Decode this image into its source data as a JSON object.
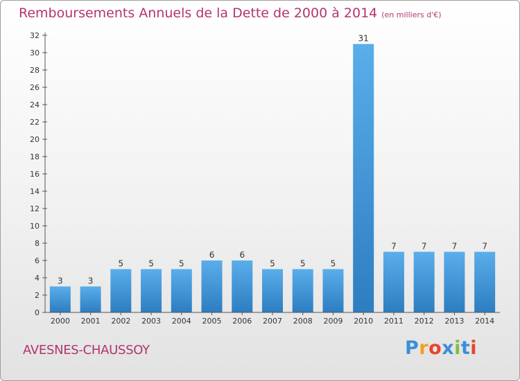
{
  "title": "Remboursements Annuels de la Dette de 2000 à 2014",
  "unit": "(en milliers d'€)",
  "location": "AVESNES-CHAUSSOY",
  "logo": {
    "letters": [
      "P",
      "r",
      "o",
      "x",
      "i",
      "t",
      "i"
    ],
    "colors": [
      "#3a8fd8",
      "#f0a020",
      "#e8452c",
      "#3a8fd8",
      "#7fbf3f",
      "#3a8fd8",
      "#e8452c"
    ]
  },
  "colors": {
    "title": "#b3346f",
    "bar_light": "#5aaeea",
    "bar_dark": "#2d7dc1",
    "axis": "#555555"
  },
  "chart_data": {
    "type": "bar",
    "categories": [
      "2000",
      "2001",
      "2002",
      "2003",
      "2004",
      "2005",
      "2006",
      "2007",
      "2008",
      "2009",
      "2010",
      "2011",
      "2012",
      "2013",
      "2014"
    ],
    "values": [
      3,
      3,
      5,
      5,
      5,
      6,
      6,
      5,
      5,
      5,
      31,
      7,
      7,
      7,
      7
    ],
    "data_labels": [
      "3",
      "3",
      "5",
      "5",
      "5",
      "6",
      "6",
      "5",
      "5",
      "5",
      "31",
      "7",
      "7",
      "7",
      "7"
    ],
    "yticks": [
      "0",
      "2",
      "4",
      "6",
      "8",
      "10",
      "12",
      "14",
      "16",
      "18",
      "20",
      "22",
      "24",
      "26",
      "28",
      "30",
      "32"
    ],
    "ylim": [
      0,
      32
    ],
    "grid": false,
    "legend": "none"
  }
}
